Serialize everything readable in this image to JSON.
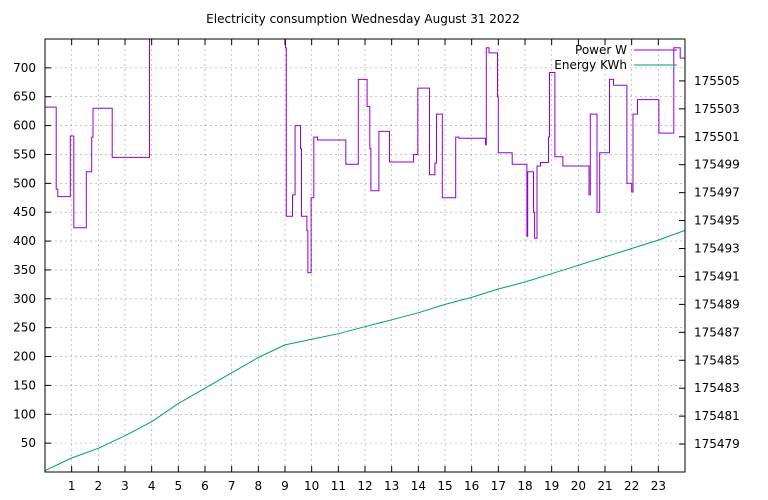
{
  "chart_data": {
    "type": "line",
    "title": "Electricity consumption Wednesday August 31 2022",
    "xlabel": "",
    "ylabel": "",
    "y2label": "",
    "grid": true,
    "legend_position": "top-right",
    "xlim": [
      0,
      24
    ],
    "ylim": [
      0,
      750
    ],
    "y2lim": [
      175477,
      175508
    ],
    "x_ticks": [
      1,
      2,
      3,
      4,
      5,
      6,
      7,
      8,
      9,
      10,
      11,
      12,
      13,
      14,
      15,
      16,
      17,
      18,
      19,
      20,
      21,
      22,
      23
    ],
    "y_ticks": [
      50,
      100,
      150,
      200,
      250,
      300,
      350,
      400,
      450,
      500,
      550,
      600,
      650,
      700
    ],
    "y2_ticks": [
      175479,
      175481,
      175483,
      175485,
      175487,
      175489,
      175491,
      175493,
      175495,
      175497,
      175499,
      175501,
      175503,
      175505
    ],
    "series": [
      {
        "name": "Power W",
        "axis": "left",
        "color": "#9400d3",
        "step": true,
        "points": [
          [
            0,
            632
          ],
          [
            0.4,
            632
          ],
          [
            0.42,
            490
          ],
          [
            0.48,
            477
          ],
          [
            0.9,
            477
          ],
          [
            0.95,
            582
          ],
          [
            1.05,
            582
          ],
          [
            1.08,
            423
          ],
          [
            1.5,
            423
          ],
          [
            1.55,
            520
          ],
          [
            1.7,
            520
          ],
          [
            1.75,
            580
          ],
          [
            1.8,
            630
          ],
          [
            2.5,
            630
          ],
          [
            2.52,
            545
          ],
          [
            3.9,
            545
          ],
          [
            3.92,
            750
          ],
          [
            9.0,
            750
          ],
          [
            9.02,
            735
          ],
          [
            9.05,
            443
          ],
          [
            9.25,
            443
          ],
          [
            9.28,
            480
          ],
          [
            9.35,
            480
          ],
          [
            9.38,
            600
          ],
          [
            9.55,
            600
          ],
          [
            9.58,
            560
          ],
          [
            9.62,
            443
          ],
          [
            9.8,
            443
          ],
          [
            9.82,
            418
          ],
          [
            9.86,
            345
          ],
          [
            9.95,
            345
          ],
          [
            9.98,
            475
          ],
          [
            10.05,
            475
          ],
          [
            10.08,
            580
          ],
          [
            10.2,
            580
          ],
          [
            10.22,
            575
          ],
          [
            11.25,
            575
          ],
          [
            11.28,
            533
          ],
          [
            11.72,
            533
          ],
          [
            11.75,
            680
          ],
          [
            12.05,
            680
          ],
          [
            12.08,
            633
          ],
          [
            12.15,
            633
          ],
          [
            12.18,
            560
          ],
          [
            12.22,
            487
          ],
          [
            12.5,
            487
          ],
          [
            12.52,
            590
          ],
          [
            12.9,
            590
          ],
          [
            12.92,
            537
          ],
          [
            13.8,
            537
          ],
          [
            13.82,
            550
          ],
          [
            13.95,
            550
          ],
          [
            13.98,
            665
          ],
          [
            14.4,
            665
          ],
          [
            14.42,
            515
          ],
          [
            14.6,
            515
          ],
          [
            14.62,
            535
          ],
          [
            14.68,
            620
          ],
          [
            14.88,
            620
          ],
          [
            14.9,
            475
          ],
          [
            15.38,
            475
          ],
          [
            15.4,
            580
          ],
          [
            15.5,
            580
          ],
          [
            15.52,
            578
          ],
          [
            16.5,
            578
          ],
          [
            16.52,
            567
          ],
          [
            16.55,
            735
          ],
          [
            16.62,
            735
          ],
          [
            16.65,
            726
          ],
          [
            16.95,
            726
          ],
          [
            16.97,
            650
          ],
          [
            17.0,
            553
          ],
          [
            17.5,
            553
          ],
          [
            17.52,
            533
          ],
          [
            18.05,
            533
          ],
          [
            18.07,
            408
          ],
          [
            18.1,
            520
          ],
          [
            18.3,
            520
          ],
          [
            18.32,
            450
          ],
          [
            18.36,
            405
          ],
          [
            18.42,
            405
          ],
          [
            18.45,
            530
          ],
          [
            18.55,
            530
          ],
          [
            18.58,
            536
          ],
          [
            18.85,
            536
          ],
          [
            18.88,
            580
          ],
          [
            18.92,
            692
          ],
          [
            19.1,
            692
          ],
          [
            19.12,
            546
          ],
          [
            19.4,
            546
          ],
          [
            19.42,
            530
          ],
          [
            20.38,
            530
          ],
          [
            20.4,
            480
          ],
          [
            20.45,
            620
          ],
          [
            20.68,
            620
          ],
          [
            20.7,
            450
          ],
          [
            20.78,
            450
          ],
          [
            20.8,
            553
          ],
          [
            21.15,
            553
          ],
          [
            21.17,
            680
          ],
          [
            21.3,
            680
          ],
          [
            21.32,
            670
          ],
          [
            21.8,
            670
          ],
          [
            21.82,
            500
          ],
          [
            21.98,
            500
          ],
          [
            22.0,
            485
          ],
          [
            22.05,
            620
          ],
          [
            22.2,
            620
          ],
          [
            22.22,
            645
          ],
          [
            23.0,
            645
          ],
          [
            23.02,
            587
          ],
          [
            23.55,
            587
          ],
          [
            23.58,
            735
          ],
          [
            23.8,
            735
          ],
          [
            23.82,
            717
          ],
          [
            24,
            717
          ]
        ]
      },
      {
        "name": "Energy KWh",
        "axis": "right",
        "color": "#009e73",
        "step": false,
        "points": [
          [
            0,
            175477.1
          ],
          [
            1,
            175478.0
          ],
          [
            2,
            175478.7
          ],
          [
            3,
            175479.6
          ],
          [
            4,
            175480.6
          ],
          [
            5,
            175481.9
          ],
          [
            6,
            175483.0
          ],
          [
            7,
            175484.1
          ],
          [
            8,
            175485.2
          ],
          [
            9,
            175486.1
          ],
          [
            10,
            175486.5
          ],
          [
            11,
            175486.9
          ],
          [
            12,
            175487.4
          ],
          [
            13,
            175487.9
          ],
          [
            14,
            175488.4
          ],
          [
            15,
            175489.0
          ],
          [
            16,
            175489.5
          ],
          [
            17,
            175490.1
          ],
          [
            18,
            175490.6
          ],
          [
            19,
            175491.2
          ],
          [
            20,
            175491.8
          ],
          [
            21,
            175492.4
          ],
          [
            22,
            175493.0
          ],
          [
            23,
            175493.6
          ],
          [
            24,
            175494.3
          ]
        ]
      }
    ]
  }
}
